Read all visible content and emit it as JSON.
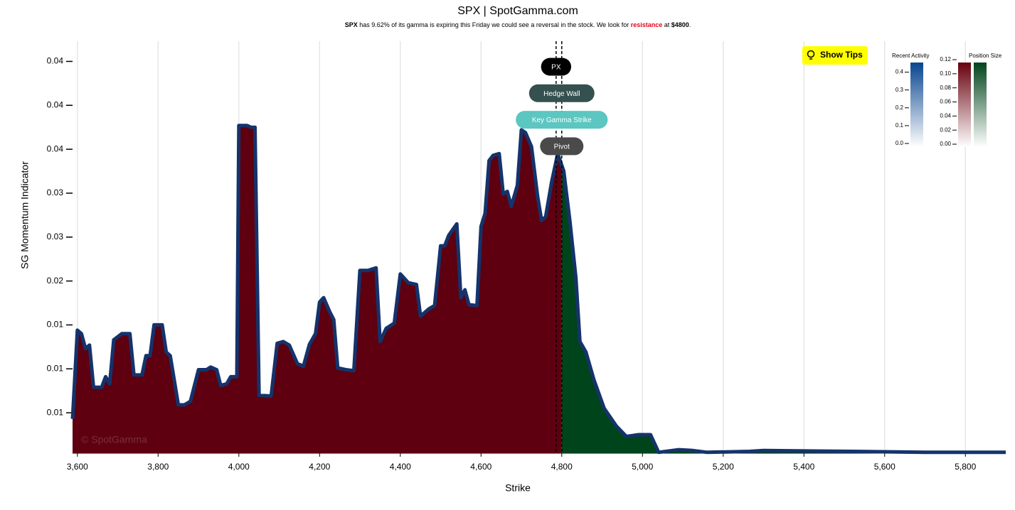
{
  "chart_data": {
    "type": "area",
    "title": "SPX | SpotGamma.com",
    "subtitle": [
      {
        "text": "SPX",
        "weight": "bold",
        "color": "#000000"
      },
      {
        "text": " has 9.62% of its gamma is expiring this Friday we could see a reversal in the stock. We look for ",
        "weight": "normal",
        "color": "#000000"
      },
      {
        "text": "resistance",
        "weight": "bold",
        "color": "#e8001c"
      },
      {
        "text": " at ",
        "weight": "normal",
        "color": "#000000"
      },
      {
        "text": "$4800",
        "weight": "bold",
        "color": "#000000"
      },
      {
        "text": ".",
        "weight": "normal",
        "color": "#000000"
      }
    ],
    "xlabel": "Strike",
    "ylabel": "SG Momentum Indicator",
    "watermark": "© SpotGamma",
    "button": "Show Tips",
    "x": [
      3588,
      3600,
      3610,
      3620,
      3630,
      3640,
      3660,
      3670,
      3680,
      3690,
      3710,
      3730,
      3740,
      3760,
      3770,
      3780,
      3790,
      3810,
      3820,
      3830,
      3850,
      3865,
      3880,
      3900,
      3920,
      3930,
      3945,
      3955,
      3970,
      3980,
      3995,
      4000,
      4020,
      4030,
      4040,
      4050,
      4080,
      4095,
      4110,
      4125,
      4145,
      4160,
      4175,
      4190,
      4200,
      4210,
      4225,
      4235,
      4245,
      4265,
      4285,
      4300,
      4320,
      4340,
      4350,
      4365,
      4385,
      4400,
      4420,
      4440,
      4450,
      4470,
      4485,
      4500,
      4510,
      4520,
      4540,
      4550,
      4560,
      4570,
      4590,
      4600,
      4610,
      4620,
      4630,
      4645,
      4655,
      4665,
      4675,
      4690,
      4700,
      4710,
      4725,
      4740,
      4750,
      4760,
      4775,
      4790,
      4805,
      4820,
      4835,
      4845,
      4860,
      4880,
      4905,
      4935,
      4960,
      4990,
      5020,
      5040,
      5090,
      5125,
      5160,
      5265,
      5300,
      5520,
      5700,
      5900
    ],
    "series": [
      {
        "name": "SG Momentum Indicator",
        "color": "#15336b",
        "below_color": "#5e0010",
        "above_color": "#00441b",
        "values": [
          0.0043,
          0.0144,
          0.014,
          0.0123,
          0.0127,
          0.0079,
          0.0079,
          0.0091,
          0.0083,
          0.0133,
          0.014,
          0.014,
          0.0093,
          0.0093,
          0.0115,
          0.0115,
          0.015,
          0.015,
          0.0119,
          0.0115,
          0.0059,
          0.0059,
          0.0063,
          0.0099,
          0.0099,
          0.0102,
          0.0099,
          0.0081,
          0.0083,
          0.0091,
          0.0091,
          0.0377,
          0.0377,
          0.0375,
          0.0375,
          0.007,
          0.0069,
          0.0129,
          0.0131,
          0.0127,
          0.0106,
          0.0103,
          0.0128,
          0.014,
          0.0176,
          0.0181,
          0.0165,
          0.0156,
          0.0101,
          0.0099,
          0.0098,
          0.0212,
          0.0212,
          0.0215,
          0.0131,
          0.0146,
          0.0152,
          0.0208,
          0.0198,
          0.0196,
          0.016,
          0.0168,
          0.0172,
          0.024,
          0.024,
          0.0252,
          0.0265,
          0.0181,
          0.019,
          0.0173,
          0.0172,
          0.0262,
          0.0277,
          0.0337,
          0.0343,
          0.0345,
          0.0299,
          0.0302,
          0.0285,
          0.0309,
          0.0372,
          0.0369,
          0.0353,
          0.0297,
          0.0269,
          0.0273,
          0.0313,
          0.0345,
          0.0325,
          0.0269,
          0.0204,
          0.0131,
          0.0119,
          0.0087,
          0.0055,
          0.0035,
          0.0023,
          0.0025,
          0.0025,
          0.0005,
          0.0008,
          0.0007,
          0.0005,
          0.0006,
          0.0007,
          0.0006,
          0.0005,
          0.0005
        ]
      }
    ],
    "xlim": [
      3588,
      5900
    ],
    "ylim": [
      0.0004,
      0.0473
    ],
    "xticks": [
      {
        "value": 3600,
        "label": "3,600"
      },
      {
        "value": 3800,
        "label": "3,800"
      },
      {
        "value": 4000,
        "label": "4,000"
      },
      {
        "value": 4200,
        "label": "4,200"
      },
      {
        "value": 4400,
        "label": "4,400"
      },
      {
        "value": 4600,
        "label": "4,600"
      },
      {
        "value": 4800,
        "label": "4,800"
      },
      {
        "value": 5000,
        "label": "5,000"
      },
      {
        "value": 5200,
        "label": "5,200"
      },
      {
        "value": 5400,
        "label": "5,400"
      },
      {
        "value": 5600,
        "label": "5,600"
      },
      {
        "value": 5800,
        "label": "5,800"
      }
    ],
    "yticks": [
      {
        "value": 0.005,
        "label": "0.01"
      },
      {
        "value": 0.01,
        "label": "0.01"
      },
      {
        "value": 0.015,
        "label": "0.01"
      },
      {
        "value": 0.02,
        "label": "0.02"
      },
      {
        "value": 0.025,
        "label": "0.03"
      },
      {
        "value": 0.03,
        "label": "0.03"
      },
      {
        "value": 0.035,
        "label": "0.04"
      },
      {
        "value": 0.04,
        "label": "0.04"
      },
      {
        "value": 0.045,
        "label": "0.04"
      }
    ],
    "grid": true,
    "levels": [
      {
        "name": "PX",
        "value": 4786,
        "color": "#000000",
        "text_color": "#ffffff"
      },
      {
        "name": "Hedge Wall",
        "value": 4800,
        "color": "#34504f",
        "text_color": "#ffffff"
      },
      {
        "name": "Key Gamma Strike",
        "value": 4800,
        "color": "#5cc6c1",
        "text_color": "#ffffff"
      },
      {
        "name": "Pivot",
        "value": 4800,
        "color": "#4a4a4a",
        "text_color": "#ffffff"
      }
    ],
    "color_scales": [
      {
        "title": "Recent Activity",
        "lim": [
          0,
          0.45
        ],
        "colors": [
          [
            "#ffffff",
            "#08458f"
          ]
        ],
        "ticks": [
          {
            "value": 0,
            "label": "0.0"
          },
          0.1,
          0.2,
          0.3,
          0.4
        ]
      },
      {
        "title": "Position Size",
        "lim": [
          0,
          0.12
        ],
        "colors": [
          [
            "#ffffff",
            "#67000d"
          ],
          [
            "#ffffff",
            "#00441b"
          ]
        ],
        "ticks": [
          {
            "value": 0,
            "label": "0.00"
          },
          0.02,
          0.04,
          0.06,
          0.08,
          {
            "value": 0.1,
            "label": "0.10"
          },
          0.12
        ]
      }
    ]
  }
}
